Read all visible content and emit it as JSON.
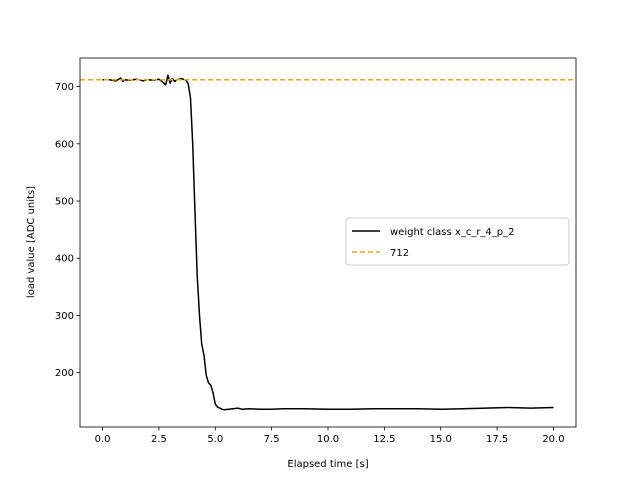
{
  "chart_data": {
    "type": "line",
    "xlabel": "Elapsed time [s]",
    "ylabel": "load value [ADC units]",
    "xlim": [
      -1.0,
      21.0
    ],
    "ylim": [
      105,
      750
    ],
    "xticks": [
      0.0,
      2.5,
      5.0,
      7.5,
      10.0,
      12.5,
      15.0,
      17.5,
      20.0
    ],
    "xtick_labels": [
      "0.0",
      "2.5",
      "5.0",
      "7.5",
      "10.0",
      "12.5",
      "15.0",
      "17.5",
      "20.0"
    ],
    "yticks": [
      200,
      300,
      400,
      500,
      600,
      700
    ],
    "ytick_labels": [
      "200",
      "300",
      "400",
      "500",
      "600",
      "700"
    ],
    "grid": false,
    "legend_position": "center-right",
    "series": [
      {
        "name": "weight class x_c_r_4_p_2",
        "color": "#000000",
        "style": "solid",
        "x": [
          0.0,
          0.3,
          0.6,
          0.8,
          0.9,
          1.0,
          1.2,
          1.5,
          1.8,
          2.0,
          2.3,
          2.5,
          2.7,
          2.8,
          2.9,
          3.0,
          3.1,
          3.2,
          3.3,
          3.5,
          3.7,
          3.8,
          3.9,
          4.0,
          4.1,
          4.2,
          4.3,
          4.4,
          4.5,
          4.6,
          4.7,
          4.8,
          4.9,
          5.0,
          5.1,
          5.2,
          5.3,
          5.4,
          5.6,
          5.8,
          6.0,
          6.2,
          6.5,
          7.0,
          7.5,
          8.0,
          9.0,
          10.0,
          11.0,
          12.0,
          13.0,
          14.0,
          15.0,
          16.0,
          17.0,
          18.0,
          19.0,
          20.0
        ],
        "y": [
          712,
          712,
          710,
          715,
          709,
          712,
          711,
          713,
          710,
          712,
          711,
          713,
          707,
          703,
          720,
          706,
          714,
          709,
          712,
          714,
          711,
          705,
          680,
          600,
          480,
          370,
          300,
          250,
          230,
          195,
          182,
          178,
          165,
          145,
          140,
          138,
          136,
          135,
          136,
          137,
          138,
          136,
          137,
          136,
          136,
          137,
          137,
          136,
          136,
          137,
          137,
          137,
          136,
          137,
          138,
          139,
          138,
          139
        ]
      },
      {
        "name": "712",
        "color": "#ffa500",
        "style": "dashed",
        "y_constant": 712
      }
    ]
  }
}
